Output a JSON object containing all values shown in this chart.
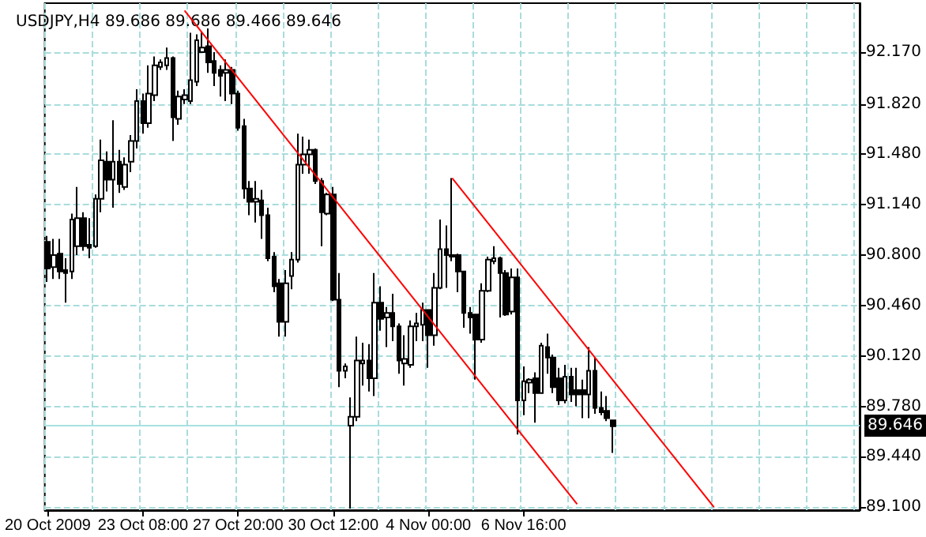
{
  "chart_data": {
    "type": "candlestick",
    "title": "USDJPY,H4 89.686 89.686 89.466 89.646",
    "categories": [
      "20 Oct 2009",
      null,
      null,
      null,
      null,
      null,
      null,
      null,
      null,
      null,
      null,
      null,
      null,
      null,
      null,
      null,
      "23 Oct 08:00",
      null,
      null,
      null,
      null,
      null,
      null,
      null,
      null,
      null,
      null,
      null,
      null,
      null,
      null,
      null,
      "27 Oct 20:00",
      null,
      null,
      null,
      null,
      null,
      null,
      null,
      null,
      null,
      null,
      null,
      null,
      null,
      null,
      null,
      "30 Oct 12:00",
      null,
      null,
      null,
      null,
      null,
      null,
      null,
      null,
      null,
      null,
      null,
      null,
      null,
      null,
      null,
      "4 Nov 00:00",
      null,
      null,
      null,
      null,
      null,
      null,
      null,
      null,
      null,
      null,
      null,
      null,
      null,
      null,
      null,
      "6 Nov 16:00",
      null,
      null,
      null,
      null,
      null,
      null,
      null,
      null,
      null,
      null,
      null,
      null,
      null,
      null,
      null,
      null,
      null,
      null,
      null,
      null,
      null,
      null,
      null,
      null,
      null,
      null,
      null,
      null,
      null,
      null,
      null,
      null,
      null,
      null,
      null,
      null,
      null,
      null,
      null,
      null,
      null,
      null,
      null,
      null,
      null,
      null,
      null,
      null,
      null,
      null,
      null,
      null,
      null,
      null,
      null,
      null
    ],
    "ohlc": [
      [
        90.89,
        90.93,
        90.62,
        90.71
      ],
      [
        90.72,
        90.91,
        90.64,
        90.8
      ],
      [
        90.81,
        90.91,
        90.64,
        90.69
      ],
      [
        90.7,
        90.78,
        90.48,
        90.68
      ],
      [
        90.69,
        91.08,
        90.64,
        91.04
      ],
      [
        90.86,
        91.26,
        90.8,
        91.05
      ],
      [
        91.05,
        91.09,
        90.83,
        90.86
      ],
      [
        90.87,
        91.05,
        90.78,
        90.85
      ],
      [
        90.86,
        91.21,
        90.85,
        91.18
      ],
      [
        91.18,
        91.58,
        91.09,
        91.44
      ],
      [
        91.43,
        91.5,
        91.23,
        91.31
      ],
      [
        91.31,
        91.71,
        91.12,
        91.43
      ],
      [
        91.43,
        91.51,
        91.22,
        91.28
      ],
      [
        91.26,
        91.46,
        91.24,
        91.41
      ],
      [
        91.43,
        91.61,
        91.36,
        91.57
      ],
      [
        91.57,
        91.92,
        91.52,
        91.84
      ],
      [
        91.84,
        91.89,
        91.62,
        91.69
      ],
      [
        91.69,
        92.08,
        91.66,
        91.89
      ],
      [
        91.88,
        92.14,
        91.84,
        92.08
      ],
      [
        92.07,
        92.12,
        92.05,
        92.1
      ],
      [
        92.08,
        92.2,
        92.05,
        92.13
      ],
      [
        92.13,
        92.14,
        91.57,
        91.73
      ],
      [
        91.72,
        91.91,
        91.68,
        91.87
      ],
      [
        91.85,
        91.92,
        91.82,
        91.88
      ],
      [
        91.84,
        92.3,
        91.82,
        91.98
      ],
      [
        91.97,
        92.29,
        91.94,
        92.25
      ],
      [
        92.17,
        92.31,
        92.17,
        92.2
      ],
      [
        92.21,
        92.33,
        92.03,
        92.1
      ],
      [
        92.11,
        92.17,
        91.94,
        92.03
      ],
      [
        92.05,
        92.08,
        91.87,
        92.01
      ],
      [
        92.03,
        92.12,
        91.84,
        92.05
      ],
      [
        92.05,
        92.07,
        91.82,
        91.89
      ],
      [
        91.89,
        91.91,
        91.64,
        91.66
      ],
      [
        91.67,
        91.72,
        91.18,
        91.25
      ],
      [
        91.25,
        91.3,
        91.07,
        91.16
      ],
      [
        91.16,
        91.3,
        91.02,
        91.18
      ],
      [
        91.17,
        91.24,
        90.91,
        91.07
      ],
      [
        91.07,
        91.12,
        90.76,
        90.78
      ],
      [
        90.79,
        90.82,
        90.55,
        90.59
      ],
      [
        90.61,
        90.64,
        90.25,
        90.35
      ],
      [
        90.35,
        90.7,
        90.25,
        90.61
      ],
      [
        90.66,
        90.82,
        90.57,
        90.77
      ],
      [
        90.77,
        91.62,
        90.75,
        91.41
      ],
      [
        91.41,
        91.6,
        91.35,
        91.48
      ],
      [
        91.48,
        91.58,
        91.35,
        91.51
      ],
      [
        91.51,
        91.52,
        91.28,
        91.3
      ],
      [
        91.3,
        91.32,
        90.86,
        91.09
      ],
      [
        91.08,
        91.22,
        91.07,
        91.21
      ],
      [
        91.21,
        91.26,
        90.49,
        90.5
      ],
      [
        90.5,
        90.68,
        89.91,
        90.02
      ],
      [
        90.02,
        90.07,
        89.97,
        90.05
      ],
      [
        89.65,
        89.84,
        89.09,
        89.71
      ],
      [
        89.71,
        90.25,
        89.68,
        90.09
      ],
      [
        90.07,
        90.21,
        89.92,
        90.09
      ],
      [
        90.09,
        90.2,
        89.88,
        89.97
      ],
      [
        89.97,
        90.68,
        89.85,
        90.48
      ],
      [
        90.48,
        90.59,
        90.29,
        90.37
      ],
      [
        90.38,
        90.45,
        90.18,
        90.41
      ],
      [
        90.41,
        90.54,
        90.22,
        90.32
      ],
      [
        90.32,
        90.34,
        90.0,
        90.09
      ],
      [
        90.07,
        90.26,
        89.92,
        90.1
      ],
      [
        90.06,
        90.36,
        90.04,
        90.32
      ],
      [
        90.32,
        90.41,
        90.22,
        90.34
      ],
      [
        90.33,
        90.48,
        90.22,
        90.43
      ],
      [
        90.43,
        90.43,
        90.04,
        90.26
      ],
      [
        90.26,
        90.68,
        90.19,
        90.58
      ],
      [
        90.58,
        91.04,
        90.57,
        90.84
      ],
      [
        90.84,
        91.0,
        90.58,
        90.8
      ],
      [
        90.8,
        91.32,
        90.76,
        90.79
      ],
      [
        90.8,
        90.81,
        90.55,
        90.69
      ],
      [
        90.69,
        90.69,
        90.31,
        90.41
      ],
      [
        90.41,
        90.45,
        90.27,
        90.38
      ],
      [
        90.4,
        90.4,
        89.96,
        90.23
      ],
      [
        90.23,
        90.61,
        90.21,
        90.56
      ],
      [
        90.56,
        90.79,
        90.55,
        90.77
      ],
      [
        90.76,
        90.86,
        90.74,
        90.78
      ],
      [
        90.78,
        90.79,
        90.38,
        90.68
      ],
      [
        90.68,
        90.7,
        90.39,
        90.4
      ],
      [
        90.42,
        90.71,
        90.4,
        90.65
      ],
      [
        90.65,
        90.71,
        89.59,
        89.82
      ],
      [
        89.82,
        90.05,
        89.72,
        89.95
      ],
      [
        89.94,
        89.97,
        89.87,
        89.96
      ],
      [
        89.97,
        90.01,
        89.67,
        89.87
      ],
      [
        89.87,
        90.21,
        89.87,
        90.19
      ],
      [
        90.18,
        90.27,
        90.0,
        90.11
      ],
      [
        90.11,
        90.13,
        89.87,
        89.91
      ],
      [
        89.97,
        90.04,
        89.79,
        89.82
      ],
      [
        89.82,
        90.06,
        89.8,
        89.98
      ],
      [
        89.98,
        90.04,
        89.81,
        89.86
      ],
      [
        89.89,
        90.04,
        89.78,
        89.86
      ],
      [
        89.89,
        89.96,
        89.7,
        89.86
      ],
      [
        89.86,
        90.18,
        89.7,
        90.02
      ],
      [
        90.02,
        90.11,
        89.73,
        89.77
      ],
      [
        89.77,
        89.88,
        89.72,
        89.74
      ],
      [
        89.75,
        89.85,
        89.68,
        89.7
      ],
      [
        89.686,
        89.686,
        89.466,
        89.646
      ],
      null,
      null,
      null,
      null,
      null,
      null,
      null,
      null,
      null,
      null,
      null,
      null,
      null,
      null,
      null,
      null,
      null,
      null,
      null,
      null,
      null,
      null,
      null,
      null,
      null,
      null,
      null,
      null,
      null,
      null,
      null,
      null,
      null,
      null,
      null,
      null,
      null,
      null,
      null,
      null,
      null
    ],
    "series": [
      {
        "type": "line",
        "color": "#ff0000",
        "values": [
          null,
          null,
          null,
          null,
          null,
          null,
          null,
          null,
          null,
          null,
          null,
          null,
          null,
          null,
          null,
          null,
          null,
          null,
          null,
          null,
          null,
          null,
          null,
          92.45,
          null,
          null,
          null,
          null,
          null,
          null,
          null,
          null,
          null,
          null,
          null,
          null,
          null,
          null,
          null,
          null,
          null,
          null,
          null,
          null,
          null,
          null,
          null,
          null,
          null,
          null,
          null,
          null,
          null,
          null,
          null,
          null,
          null,
          null,
          null,
          null,
          null,
          null,
          null,
          null,
          null,
          null,
          null,
          null,
          null,
          null,
          null,
          null,
          null,
          null,
          null,
          null,
          null,
          null,
          null,
          null,
          null,
          null,
          null,
          null,
          null,
          null,
          null,
          null,
          null,
          89.12,
          null,
          null,
          null,
          null,
          null,
          null,
          null,
          null,
          null,
          null,
          null,
          null,
          null,
          null,
          null,
          null,
          null,
          null,
          null,
          null,
          null,
          null,
          null,
          null,
          null,
          null,
          null,
          null,
          null,
          null,
          null,
          null,
          null,
          null,
          null,
          null,
          null,
          null,
          null,
          null,
          null,
          null,
          null,
          null,
          null,
          null,
          null
        ]
      },
      {
        "type": "line",
        "color": "#ff0000",
        "values": [
          null,
          null,
          null,
          null,
          null,
          null,
          null,
          null,
          null,
          null,
          null,
          null,
          null,
          null,
          null,
          null,
          null,
          null,
          null,
          null,
          null,
          null,
          null,
          null,
          null,
          null,
          null,
          null,
          null,
          null,
          null,
          null,
          null,
          null,
          null,
          null,
          null,
          null,
          null,
          null,
          null,
          null,
          null,
          null,
          null,
          null,
          null,
          null,
          null,
          null,
          null,
          null,
          null,
          null,
          null,
          null,
          null,
          null,
          null,
          null,
          null,
          null,
          null,
          null,
          null,
          null,
          null,
          null,
          91.32,
          null,
          null,
          null,
          null,
          null,
          null,
          null,
          null,
          null,
          null,
          null,
          null,
          null,
          null,
          null,
          null,
          null,
          null,
          null,
          null,
          null,
          null,
          null,
          null,
          null,
          null,
          null,
          null,
          null,
          null,
          null,
          null,
          null,
          null,
          null,
          null,
          null,
          null,
          null,
          null,
          null,
          null,
          null,
          89.1,
          null,
          null,
          null,
          null,
          null,
          null,
          null,
          null,
          null,
          null,
          null,
          null,
          null,
          null,
          null,
          null,
          null,
          null,
          null,
          null,
          null,
          null,
          null,
          null
        ]
      }
    ],
    "ylim": [
      89.08,
      92.5
    ],
    "yticks": [
      {
        "value": 89.1,
        "label": "89.100"
      },
      {
        "value": 89.44,
        "label": "89.440"
      },
      {
        "value": 89.78,
        "label": "89.780"
      },
      {
        "value": 90.12,
        "label": "90.120"
      },
      {
        "value": 90.46,
        "label": "90.460"
      },
      {
        "value": 90.8,
        "label": "90.800"
      },
      {
        "value": 91.14,
        "label": "91.140"
      },
      {
        "value": 91.48,
        "label": "91.480"
      },
      {
        "value": 91.82,
        "label": "91.820"
      },
      {
        "value": 92.17,
        "label": "92.170"
      }
    ],
    "ref_lines": [
      {
        "axis": "y",
        "value": 89.646,
        "label": "89.646",
        "color": "#a8e0e0"
      }
    ],
    "grid": true
  }
}
